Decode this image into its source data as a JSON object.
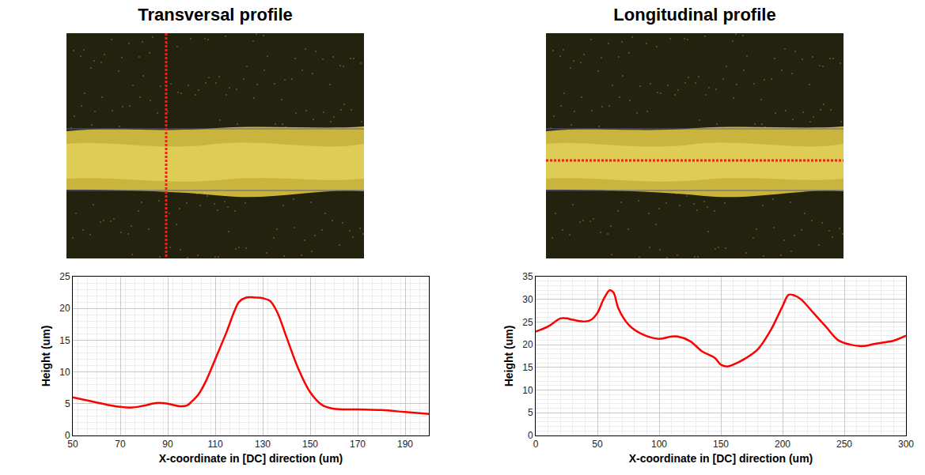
{
  "chart_data": [
    {
      "type": "line",
      "title": "Transversal profile",
      "x_label": "X-coordinate in [DC] direction (um)",
      "y_label": "Height (um)",
      "x": [
        50,
        55,
        60,
        65,
        70,
        75,
        80,
        85,
        88,
        90,
        95,
        98,
        100,
        103,
        106,
        110,
        115,
        118,
        120,
        123,
        127,
        130,
        133,
        136,
        140,
        145,
        150,
        155,
        160,
        170,
        180,
        190,
        200
      ],
      "series": [
        {
          "name": "Transversal profile",
          "color": "#ff0000",
          "line_style": "solid",
          "values": [
            6.0,
            5.6,
            5.2,
            4.8,
            4.5,
            4.4,
            4.7,
            5.1,
            5.1,
            5.0,
            4.6,
            4.7,
            5.3,
            6.5,
            8.5,
            12.0,
            16.5,
            19.5,
            21.0,
            21.7,
            21.7,
            21.6,
            21.2,
            19.5,
            15.5,
            10.5,
            6.8,
            4.8,
            4.2,
            4.1,
            4.0,
            3.7,
            3.4
          ]
        }
      ],
      "xlim": [
        50,
        200
      ],
      "xticks": [
        50,
        70,
        90,
        110,
        130,
        150,
        170,
        190
      ],
      "ylim": [
        0,
        25
      ],
      "yticks": [
        0,
        5,
        10,
        15,
        20,
        25
      ],
      "grid": true
    },
    {
      "type": "line",
      "title": "Longitudinal profile",
      "x_label": "X-coordinate in [DC] direction (um)",
      "y_label": "Height (um)",
      "x": [
        0,
        10,
        20,
        25,
        30,
        40,
        45,
        50,
        55,
        60,
        63,
        67,
        75,
        85,
        100,
        110,
        115,
        125,
        135,
        145,
        150,
        155,
        160,
        170,
        180,
        190,
        200,
        205,
        210,
        215,
        225,
        235,
        245,
        255,
        265,
        275,
        290,
        300
      ],
      "series": [
        {
          "name": "Longitudinal profile",
          "color": "#ff0000",
          "line_style": "solid",
          "values": [
            22.9,
            24.0,
            25.8,
            25.8,
            25.5,
            25.1,
            25.5,
            27.0,
            30.0,
            32.0,
            31.5,
            28.0,
            24.5,
            22.5,
            21.3,
            21.8,
            21.8,
            20.8,
            18.5,
            17.1,
            15.6,
            15.2,
            15.6,
            17.0,
            19.0,
            23.0,
            28.5,
            31.0,
            30.8,
            30.0,
            27.0,
            24.0,
            21.0,
            20.0,
            19.7,
            20.2,
            20.9,
            22.0
          ]
        }
      ],
      "xlim": [
        0,
        300
      ],
      "xticks": [
        0,
        50,
        100,
        150,
        200,
        250,
        300
      ],
      "ylim": [
        0,
        35
      ],
      "yticks": [
        0,
        5,
        10,
        15,
        20,
        25,
        30,
        35
      ],
      "grid": true
    }
  ]
}
